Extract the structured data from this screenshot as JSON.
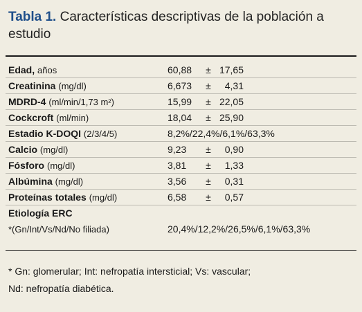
{
  "table": {
    "label": "Tabla 1.",
    "title": "Características descriptivas de la población a estudio"
  },
  "rows": [
    {
      "name": "Edad,",
      "unit": "años",
      "mean": "60,88",
      "pm": "±",
      "sd": "17,65"
    },
    {
      "name": "Creatinina",
      "unit": "(mg/dl)",
      "mean": "6,673",
      "pm": "±",
      "sd": "4,31"
    },
    {
      "name": "MDRD-4",
      "unit": "(ml/min/1,73 m²)",
      "mean": "15,99",
      "pm": "±",
      "sd": "22,05"
    },
    {
      "name": "Cockcroft",
      "unit": "(ml/min)",
      "mean": "18,04",
      "pm": "±",
      "sd": "25,90"
    },
    {
      "name": "Estadio K-DOQI",
      "unit": "(2/3/4/5)",
      "value": "8,2%/22,4%/6,1%/63,3%"
    },
    {
      "name": "Calcio",
      "unit": "(mg/dl)",
      "mean": "9,23",
      "pm": "±",
      "sd": "0,90"
    },
    {
      "name": "Fósforo",
      "unit": "(mg/dl)",
      "mean": "3,81",
      "pm": "±",
      "sd": "1,33"
    },
    {
      "name": "Albúmina",
      "unit": "(mg/dl)",
      "mean": "3,56",
      "pm": "±",
      "sd": "0,31"
    },
    {
      "name": "Proteínas totales",
      "unit": "(mg/dl)",
      "mean": "6,58",
      "pm": "±",
      "sd": "0,57"
    }
  ],
  "etiology": {
    "name": "Etiología ERC",
    "sub": "*(Gn/Int/Vs/Nd/No filiada)",
    "value": "20,4%/12,2%/26,5%/6,1%/63,3%"
  },
  "footnote": {
    "line1": "* Gn: glomerular; Int: nefropatía intersticial; Vs: vascular;",
    "line2": "Nd: nefropatía diabética."
  },
  "colors": {
    "background": "#f0ede2",
    "title_label": "#1f4f8a",
    "rule": "#1a1a1a",
    "divider": "#bcbab1"
  }
}
